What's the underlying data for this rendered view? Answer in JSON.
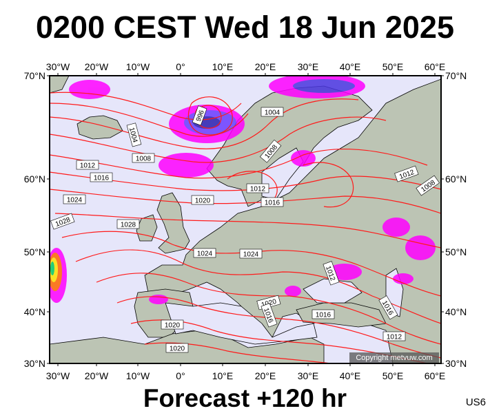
{
  "title": "0200 CEST Wed 18 Jun 2025",
  "footer": "Forecast +120 hr",
  "tag": "US6",
  "copyright": "Copyright metvuw.com",
  "lon_ticks": [
    "30°W",
    "20°W",
    "10°W",
    "0°",
    "10°E",
    "20°E",
    "30°E",
    "40°E",
    "50°E",
    "60°E"
  ],
  "lat_ticks_left": [
    "70°N",
    "60°N",
    "50°N",
    "40°N",
    "30°N"
  ],
  "lat_ticks_right": [
    "70°N",
    "60°N",
    "50°N",
    "40°N",
    "30°N"
  ],
  "isobar_labels": [
    "996",
    "1004",
    "1008",
    "1004",
    "1008",
    "1012",
    "1016",
    "1024",
    "1028",
    "1028",
    "1020",
    "1012",
    "1016",
    "1012",
    "1008",
    "1024",
    "1024",
    "1012",
    "1020",
    "1016",
    "1016",
    "1016",
    "1020",
    "1020",
    "1012"
  ],
  "colors": {
    "ocean": "#e6e6fa",
    "land": "#bcc4b4",
    "isobar": "#ff1a1a",
    "precip_light": "#ff00ff",
    "precip_heavy": "#3b2fd6",
    "precip_extreme": "#ffe100"
  }
}
